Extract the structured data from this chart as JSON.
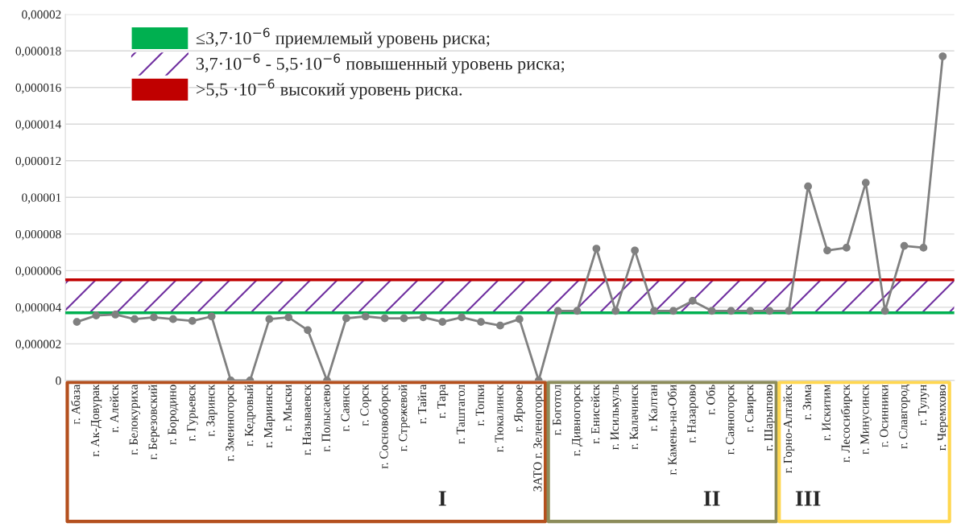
{
  "chart_data": {
    "type": "line",
    "categories": [
      "г. Абаза",
      "г. Ак-Довурак",
      "г. Алейск",
      "г. Белокуриха",
      "г. Березовский",
      "г. Бородино",
      "г. Гурьевск",
      "г. Заринск",
      "г. Змеиногорск",
      "г. Кедровый",
      "г. Мариинск",
      "г. Мыски",
      "г. Называевск",
      "г. Полысаево",
      "г. Саянск",
      "г. Сорск",
      "г. Сосновоборск",
      "г. Стрежевой",
      "г. Тайга",
      "г. Тара",
      "г. Таштагол",
      "г. Топки",
      "г. Тюкалинск",
      "г. Яровое",
      "ЗАТО г. Зеленогорск",
      "г. Боготол",
      "г. Дивногорск",
      "г. Енисейск",
      "г. Исилькуль",
      "г. Калачинск",
      "г. Калтан",
      "г. Камень-на-Оби",
      "г. Назарово",
      "г. Обь",
      "г. Саяногорск",
      "г. Свирск",
      "г. Шарыпово",
      "г. Горно-Алтайск",
      "г. Зима",
      "г. Искитим",
      "г. Лесосибирск",
      "г. Минусинск",
      "г. Осинники",
      "г. Славгород",
      "г. Тулун",
      "г. Черемхово"
    ],
    "series": [
      {
        "color": "#808080",
        "values": [
          3.2e-06,
          3.55e-06,
          3.6e-06,
          3.35e-06,
          3.45e-06,
          3.35e-06,
          3.25e-06,
          3.5e-06,
          0,
          0,
          3.35e-06,
          3.45e-06,
          2.75e-06,
          0,
          3.4e-06,
          3.5e-06,
          3.4e-06,
          3.4e-06,
          3.45e-06,
          3.2e-06,
          3.45e-06,
          3.2e-06,
          3e-06,
          3.35e-06,
          0,
          3.8e-06,
          3.8e-06,
          7.2e-06,
          3.8e-06,
          7.1e-06,
          3.8e-06,
          3.8e-06,
          4.35e-06,
          3.8e-06,
          3.8e-06,
          3.8e-06,
          3.8e-06,
          3.8e-06,
          1.06e-05,
          7.1e-06,
          7.25e-06,
          1.08e-05,
          3.8e-06,
          7.35e-06,
          7.25e-06,
          1.77e-05
        ]
      }
    ],
    "ylim": [
      0,
      2e-05
    ],
    "yticks": [
      {
        "value": 0,
        "label": "0"
      },
      {
        "value": 2e-06,
        "label": "0,000002"
      },
      {
        "value": 4e-06,
        "label": "0,000004"
      },
      {
        "value": 6e-06,
        "label": "0,000006"
      },
      {
        "value": 8e-06,
        "label": "0,000008"
      },
      {
        "value": 1e-05,
        "label": "0,00001"
      },
      {
        "value": 1.2e-05,
        "label": "0,000012"
      },
      {
        "value": 1.4e-05,
        "label": "0,000014"
      },
      {
        "value": 1.6e-05,
        "label": "0,000016"
      },
      {
        "value": 1.8e-05,
        "label": "0,000018"
      },
      {
        "value": 2e-05,
        "label": "0,00002"
      }
    ],
    "ref_lines": [
      {
        "axis": "y",
        "value": 3.7e-06,
        "label": "≤3,7·10$^{−6}$ приемлемый уровень риска;",
        "color": "#00b050",
        "line_style": "solid"
      },
      {
        "axis": "y",
        "value": 5.5e-06,
        "label": ">5,5 ·10$^{−6}$ высокий уровень риска.",
        "color": "#c00000",
        "line_style": "solid"
      }
    ],
    "bands": [
      {
        "axis": "y",
        "from": 3.7e-06,
        "to": 5.5e-06,
        "label": "3,7·10$^{−6}$ - 5,5·10$^{−6}$ повышенный уровень риска;",
        "color": "#7030a0"
      }
    ],
    "annotations": [
      "I",
      "II",
      "III"
    ],
    "grid": "y",
    "legend": "top left",
    "marker": "circle",
    "line_style": "solid"
  }
}
